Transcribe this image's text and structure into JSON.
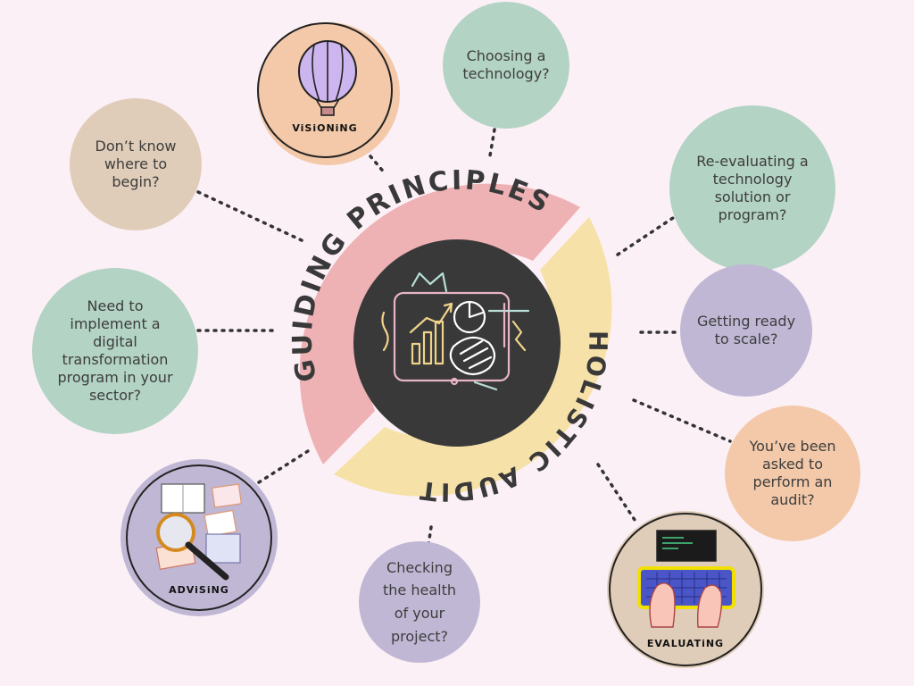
{
  "center": {
    "guiding": "GUIDING PRINCIPLES",
    "holistic": "HOLISTIC AUDITS"
  },
  "bubbles": {
    "dont_know": "Don’t know\nwhere to\nbegin?",
    "choosing": "Choosing a\ntechnology?",
    "re_evaluating": "Re-evaluating a\ntechnology\nsolution or\nprogram?",
    "digital": "Need to\nimplement a\ndigital\ntransformation\nprogram in your\nsector?",
    "scale": "Getting ready\nto scale?",
    "audit": "You’ve been\nasked to\nperform an\naudit?",
    "health": "Checking\nthe health\nof your\nproject?"
  },
  "icons": {
    "visioning": "ViSiONiNG",
    "advising": "ADViSiNG",
    "evaluating": "EVALUATiNG"
  },
  "colors": {
    "background": "#fcf0f7",
    "guiding_band": "#eeb2b5",
    "holistic_band": "#f6e2a8",
    "center_disc": "#3a3939",
    "sage": "#b3d3c4",
    "tan": "#e0cdb9",
    "lavender": "#c0b7d5",
    "peach": "#f3c9a9"
  }
}
